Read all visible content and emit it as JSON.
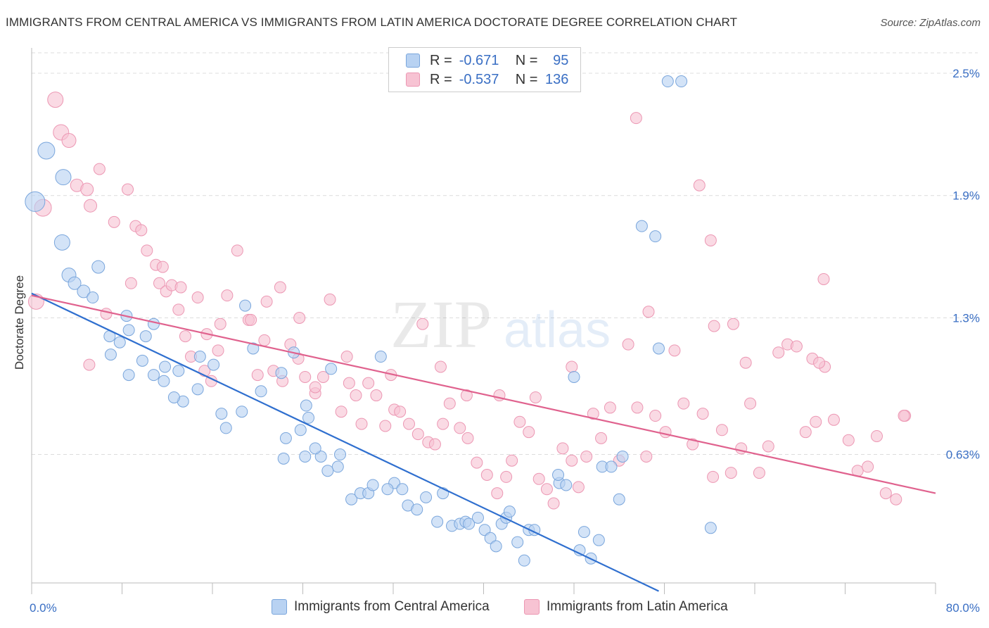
{
  "title": "IMMIGRANTS FROM CENTRAL AMERICA VS IMMIGRANTS FROM LATIN AMERICA DOCTORATE DEGREE CORRELATION CHART",
  "source": "Source: ZipAtlas.com",
  "watermark": {
    "zip": "ZIP",
    "atlas": "atlas"
  },
  "legend": {
    "rows": [
      {
        "r_label": "R =",
        "r_value": "-0.671",
        "n_label": "N =",
        "n_value": "95"
      },
      {
        "r_label": "R =",
        "r_value": "-0.537",
        "n_label": "N =",
        "n_value": "136"
      }
    ]
  },
  "colors": {
    "blue_fill": "#b8d2f2",
    "blue_stroke": "#7aa6dc",
    "blue_line": "#2f6fcf",
    "pink_fill": "#f7c3d3",
    "pink_stroke": "#ec97b3",
    "pink_line": "#e0628e",
    "tick_label": "#3a6fc4",
    "grid": "#dcdcdc"
  },
  "chart_data": {
    "type": "scatter",
    "title": "IMMIGRANTS FROM CENTRAL AMERICA VS IMMIGRANTS FROM LATIN AMERICA DOCTORATE DEGREE CORRELATION CHART",
    "xlabel": "",
    "ylabel": "Doctorate Degree",
    "xlim": [
      0,
      80
    ],
    "ylim": [
      0,
      2.6
    ],
    "x_tick_labels": [
      "0.0%",
      "80.0%"
    ],
    "y_ticks": [
      {
        "value": 2.5,
        "label": "2.5%"
      },
      {
        "value": 1.9,
        "label": "1.9%"
      },
      {
        "value": 1.3,
        "label": "1.3%"
      },
      {
        "value": 0.63,
        "label": "0.63%"
      }
    ],
    "series": [
      {
        "name": "Immigrants from Central America",
        "color": "blue",
        "r": -0.671,
        "n": 95,
        "trend": {
          "x0": 0,
          "y0": 1.42,
          "x1": 55.5,
          "y1": -0.04
        },
        "points": [
          [
            0.3,
            1.87,
            14
          ],
          [
            1.3,
            2.12,
            12
          ],
          [
            2.8,
            1.99,
            11
          ],
          [
            2.7,
            1.67,
            11
          ],
          [
            3.3,
            1.51,
            10
          ],
          [
            3.8,
            1.47,
            9
          ],
          [
            4.6,
            1.43,
            9
          ],
          [
            5.9,
            1.55,
            9
          ],
          [
            5.4,
            1.4,
            8
          ],
          [
            7.8,
            1.18,
            8
          ],
          [
            8.6,
            1.24,
            8
          ],
          [
            6.9,
            1.21,
            8
          ],
          [
            10.1,
            1.21,
            8
          ],
          [
            7.0,
            1.12,
            8
          ],
          [
            9.8,
            1.09,
            8
          ],
          [
            8.6,
            1.02,
            8
          ],
          [
            11.8,
            1.06,
            8
          ],
          [
            11.7,
            0.99,
            8
          ],
          [
            13.4,
            0.89,
            8
          ],
          [
            12.6,
            0.91,
            8
          ],
          [
            10.8,
            1.02,
            8
          ],
          [
            10.8,
            1.27,
            8
          ],
          [
            8.4,
            1.31,
            8
          ],
          [
            14.7,
            0.95,
            8
          ],
          [
            14.9,
            1.11,
            8
          ],
          [
            16.8,
            0.83,
            8
          ],
          [
            18.6,
            0.84,
            8
          ],
          [
            17.2,
            0.76,
            8
          ],
          [
            20.3,
            0.94,
            8
          ],
          [
            19.6,
            1.15,
            8
          ],
          [
            22.1,
            1.03,
            8
          ],
          [
            24.3,
            0.87,
            8
          ],
          [
            24.5,
            0.81,
            8
          ],
          [
            23.8,
            0.75,
            8
          ],
          [
            22.5,
            0.71,
            8
          ],
          [
            22.3,
            0.61,
            8
          ],
          [
            24.2,
            0.62,
            8
          ],
          [
            25.6,
            0.62,
            8
          ],
          [
            27.3,
            0.63,
            8
          ],
          [
            27.1,
            0.57,
            8
          ],
          [
            26.2,
            0.55,
            8
          ],
          [
            25.1,
            0.66,
            8
          ],
          [
            28.3,
            0.41,
            8
          ],
          [
            29.1,
            0.44,
            8
          ],
          [
            29.8,
            0.44,
            8
          ],
          [
            30.2,
            0.48,
            8
          ],
          [
            32.1,
            0.49,
            8
          ],
          [
            31.5,
            0.46,
            8
          ],
          [
            32.8,
            0.46,
            8
          ],
          [
            33.3,
            0.38,
            8
          ],
          [
            34.1,
            0.36,
            8
          ],
          [
            35.9,
            0.3,
            8
          ],
          [
            34.9,
            0.42,
            8
          ],
          [
            36.4,
            0.44,
            8
          ],
          [
            37.2,
            0.28,
            8
          ],
          [
            37.9,
            0.29,
            8
          ],
          [
            38.4,
            0.3,
            8
          ],
          [
            38.7,
            0.29,
            8
          ],
          [
            39.5,
            0.32,
            8
          ],
          [
            40.1,
            0.26,
            8
          ],
          [
            40.6,
            0.22,
            8
          ],
          [
            41.6,
            0.29,
            8
          ],
          [
            42.0,
            0.32,
            8
          ],
          [
            42.3,
            0.35,
            8
          ],
          [
            41.1,
            0.18,
            8
          ],
          [
            43.0,
            0.2,
            8
          ],
          [
            44.0,
            0.26,
            8
          ],
          [
            44.5,
            0.26,
            8
          ],
          [
            43.6,
            0.11,
            8
          ],
          [
            46.7,
            0.49,
            8
          ],
          [
            46.6,
            0.53,
            8
          ],
          [
            47.3,
            0.48,
            8
          ],
          [
            48.9,
            0.25,
            8
          ],
          [
            48.5,
            0.16,
            8
          ],
          [
            49.5,
            0.12,
            8
          ],
          [
            50.2,
            0.21,
            8
          ],
          [
            50.5,
            0.57,
            8
          ],
          [
            51.3,
            0.57,
            8
          ],
          [
            52.3,
            0.62,
            8
          ],
          [
            54.0,
            1.75,
            8
          ],
          [
            55.2,
            1.7,
            8
          ],
          [
            56.3,
            2.46,
            8
          ],
          [
            57.5,
            2.46,
            8
          ],
          [
            60.1,
            0.27,
            8
          ],
          [
            48.0,
            1.01,
            8
          ],
          [
            52.0,
            0.41,
            8
          ],
          [
            55.5,
            1.15,
            8
          ],
          [
            23.2,
            1.13,
            8
          ],
          [
            26.5,
            1.05,
            8
          ],
          [
            30.9,
            1.11,
            8
          ],
          [
            16.1,
            1.07,
            8
          ],
          [
            13.0,
            1.04,
            8
          ],
          [
            18.9,
            1.36,
            8
          ]
        ]
      },
      {
        "name": "Immigrants from Latin America",
        "color": "pink",
        "r": -0.537,
        "n": 136,
        "trend": {
          "x0": 0,
          "y0": 1.41,
          "x1": 80,
          "y1": 0.44
        },
        "points": [
          [
            0.4,
            1.38,
            11
          ],
          [
            1.0,
            1.84,
            12
          ],
          [
            2.1,
            2.37,
            11
          ],
          [
            2.6,
            2.21,
            11
          ],
          [
            3.3,
            2.17,
            10
          ],
          [
            4.0,
            1.95,
            9
          ],
          [
            4.9,
            1.93,
            9
          ],
          [
            5.2,
            1.85,
            9
          ],
          [
            6.0,
            2.03,
            8
          ],
          [
            7.3,
            1.77,
            8
          ],
          [
            8.5,
            1.93,
            8
          ],
          [
            9.2,
            1.75,
            8
          ],
          [
            9.7,
            1.73,
            8
          ],
          [
            10.2,
            1.63,
            8
          ],
          [
            11.0,
            1.56,
            8
          ],
          [
            11.3,
            1.47,
            8
          ],
          [
            11.9,
            1.43,
            8
          ],
          [
            12.4,
            1.46,
            8
          ],
          [
            13.0,
            1.34,
            8
          ],
          [
            13.6,
            1.21,
            8
          ],
          [
            14.1,
            1.11,
            8
          ],
          [
            15.3,
            1.04,
            8
          ],
          [
            15.9,
            0.99,
            8
          ],
          [
            16.5,
            1.14,
            8
          ],
          [
            16.7,
            1.27,
            8
          ],
          [
            17.3,
            1.41,
            8
          ],
          [
            18.2,
            1.63,
            8
          ],
          [
            19.2,
            1.29,
            8
          ],
          [
            20.0,
            1.02,
            8
          ],
          [
            20.6,
            1.19,
            8
          ],
          [
            21.4,
            1.04,
            8
          ],
          [
            22.2,
            0.99,
            8
          ],
          [
            22.9,
            1.17,
            8
          ],
          [
            23.6,
            1.1,
            8
          ],
          [
            24.2,
            1.01,
            8
          ],
          [
            25.1,
            0.93,
            8
          ],
          [
            25.8,
            1.01,
            8
          ],
          [
            26.4,
            1.39,
            8
          ],
          [
            27.4,
            0.84,
            8
          ],
          [
            27.9,
            1.11,
            8
          ],
          [
            28.7,
            0.92,
            8
          ],
          [
            29.2,
            0.78,
            8
          ],
          [
            29.8,
            0.98,
            8
          ],
          [
            30.5,
            0.92,
            8
          ],
          [
            31.3,
            0.77,
            8
          ],
          [
            32.1,
            0.85,
            8
          ],
          [
            32.6,
            0.84,
            8
          ],
          [
            33.4,
            0.78,
            8
          ],
          [
            34.2,
            0.73,
            8
          ],
          [
            35.1,
            0.69,
            8
          ],
          [
            35.7,
            0.68,
            8
          ],
          [
            36.4,
            0.78,
            8
          ],
          [
            37.0,
            0.88,
            8
          ],
          [
            37.9,
            0.76,
            8
          ],
          [
            38.6,
            0.71,
            8
          ],
          [
            39.4,
            0.59,
            8
          ],
          [
            40.3,
            0.53,
            8
          ],
          [
            41.2,
            0.44,
            8
          ],
          [
            42.0,
            0.52,
            8
          ],
          [
            42.5,
            0.6,
            8
          ],
          [
            43.2,
            0.79,
            8
          ],
          [
            44.0,
            0.74,
            8
          ],
          [
            44.9,
            0.51,
            8
          ],
          [
            45.6,
            0.46,
            8
          ],
          [
            46.2,
            0.39,
            8
          ],
          [
            47.0,
            0.66,
            8
          ],
          [
            47.8,
            0.6,
            8
          ],
          [
            48.4,
            0.47,
            8
          ],
          [
            49.1,
            0.62,
            8
          ],
          [
            49.7,
            0.83,
            8
          ],
          [
            50.4,
            0.71,
            8
          ],
          [
            51.2,
            0.86,
            8
          ],
          [
            52.0,
            0.6,
            8
          ],
          [
            52.8,
            1.17,
            8
          ],
          [
            53.6,
            0.86,
            8
          ],
          [
            54.4,
            0.62,
            8
          ],
          [
            55.2,
            0.82,
            8
          ],
          [
            56.1,
            0.74,
            8
          ],
          [
            56.9,
            1.14,
            8
          ],
          [
            57.7,
            0.88,
            8
          ],
          [
            58.5,
            0.68,
            8
          ],
          [
            59.4,
            0.83,
            8
          ],
          [
            60.3,
            0.52,
            8
          ],
          [
            61.1,
            0.75,
            8
          ],
          [
            61.9,
            0.54,
            8
          ],
          [
            62.8,
            0.66,
            8
          ],
          [
            63.6,
            0.88,
            8
          ],
          [
            64.4,
            0.54,
            8
          ],
          [
            65.2,
            0.67,
            8
          ],
          [
            66.1,
            1.13,
            8
          ],
          [
            66.9,
            1.17,
            8
          ],
          [
            67.7,
            1.16,
            8
          ],
          [
            68.5,
            0.74,
            8
          ],
          [
            69.4,
            0.79,
            8
          ],
          [
            70.2,
            1.06,
            8
          ],
          [
            71.0,
            0.8,
            8
          ],
          [
            72.3,
            0.7,
            8
          ],
          [
            73.1,
            0.55,
            8
          ],
          [
            74.0,
            0.57,
            8
          ],
          [
            74.8,
            0.72,
            8
          ],
          [
            75.6,
            0.44,
            8
          ],
          [
            76.5,
            0.41,
            8
          ],
          [
            77.3,
            0.82,
            8
          ],
          [
            53.5,
            2.28,
            8
          ],
          [
            59.1,
            1.95,
            8
          ],
          [
            54.6,
            1.33,
            8
          ],
          [
            60.1,
            1.68,
            8
          ],
          [
            60.4,
            1.26,
            8
          ],
          [
            62.1,
            1.27,
            8
          ],
          [
            63.2,
            1.08,
            8
          ],
          [
            69.1,
            1.1,
            8
          ],
          [
            69.7,
            1.08,
            8
          ],
          [
            70.1,
            1.49,
            8
          ],
          [
            77.2,
            0.82,
            8
          ],
          [
            47.8,
            1.06,
            8
          ],
          [
            44.6,
            0.91,
            8
          ],
          [
            41.4,
            0.92,
            8
          ],
          [
            38.5,
            0.92,
            8
          ],
          [
            36.2,
            1.06,
            8
          ],
          [
            31.8,
            1.02,
            8
          ],
          [
            34.6,
            1.27,
            8
          ],
          [
            28.1,
            0.98,
            8
          ],
          [
            25.1,
            0.96,
            8
          ],
          [
            23.7,
            1.3,
            8
          ],
          [
            22.0,
            1.45,
            8
          ],
          [
            20.8,
            1.38,
            8
          ],
          [
            19.4,
            1.29,
            8
          ],
          [
            15.5,
            1.22,
            8
          ],
          [
            14.7,
            1.4,
            8
          ],
          [
            13.2,
            1.45,
            8
          ],
          [
            11.6,
            1.55,
            8
          ],
          [
            8.8,
            1.47,
            8
          ],
          [
            6.6,
            1.32,
            8
          ],
          [
            5.1,
            1.07,
            8
          ]
        ]
      }
    ]
  },
  "bottom_legend": {
    "series1_label": "Immigrants from Central America",
    "series2_label": "Immigrants from Latin America"
  }
}
